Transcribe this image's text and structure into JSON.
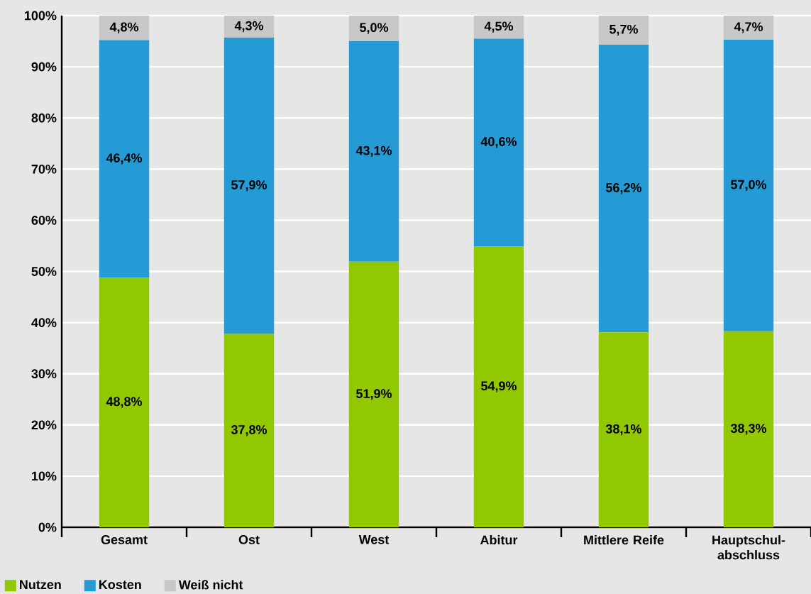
{
  "chart_data": {
    "type": "bar",
    "stacked": true,
    "categories": [
      "Gesamt",
      "Ost",
      "West",
      "Abitur",
      "Mittlere Reife",
      "Hauptschul-abschluss"
    ],
    "series": [
      {
        "name": "Nutzen",
        "color": "#92c800",
        "values": [
          48.8,
          37.8,
          51.9,
          54.9,
          38.1,
          38.3
        ],
        "value_labels": [
          "48,8%",
          "37,8%",
          "51,9%",
          "54,9%",
          "38,1%",
          "38,3%"
        ]
      },
      {
        "name": "Kosten",
        "color": "#259bd5",
        "values": [
          46.4,
          57.9,
          43.1,
          40.6,
          56.2,
          57.0
        ],
        "value_labels": [
          "46,4%",
          "57,9%",
          "43,1%",
          "40,6%",
          "56,2%",
          "57,0%"
        ]
      },
      {
        "name": "Weiß nicht",
        "color": "#c8c8c8",
        "values": [
          4.8,
          4.3,
          5.0,
          4.5,
          5.7,
          4.7
        ],
        "value_labels": [
          "4,8%",
          "4,3%",
          "5,0%",
          "4,5%",
          "5,7%",
          "4,7%"
        ]
      }
    ],
    "ylim": [
      0,
      100
    ],
    "yticks": [
      {
        "value": 0,
        "label": "0%"
      },
      {
        "value": 10,
        "label": "10%"
      },
      {
        "value": 20,
        "label": "20%"
      },
      {
        "value": 30,
        "label": "30%"
      },
      {
        "value": 40,
        "label": "40%"
      },
      {
        "value": 50,
        "label": "50%"
      },
      {
        "value": 60,
        "label": "60%"
      },
      {
        "value": 70,
        "label": "70%"
      },
      {
        "value": 80,
        "label": "80%"
      },
      {
        "value": 90,
        "label": "90%"
      },
      {
        "value": 100,
        "label": "100%"
      }
    ],
    "grid": "y",
    "legend": "bottom left"
  }
}
